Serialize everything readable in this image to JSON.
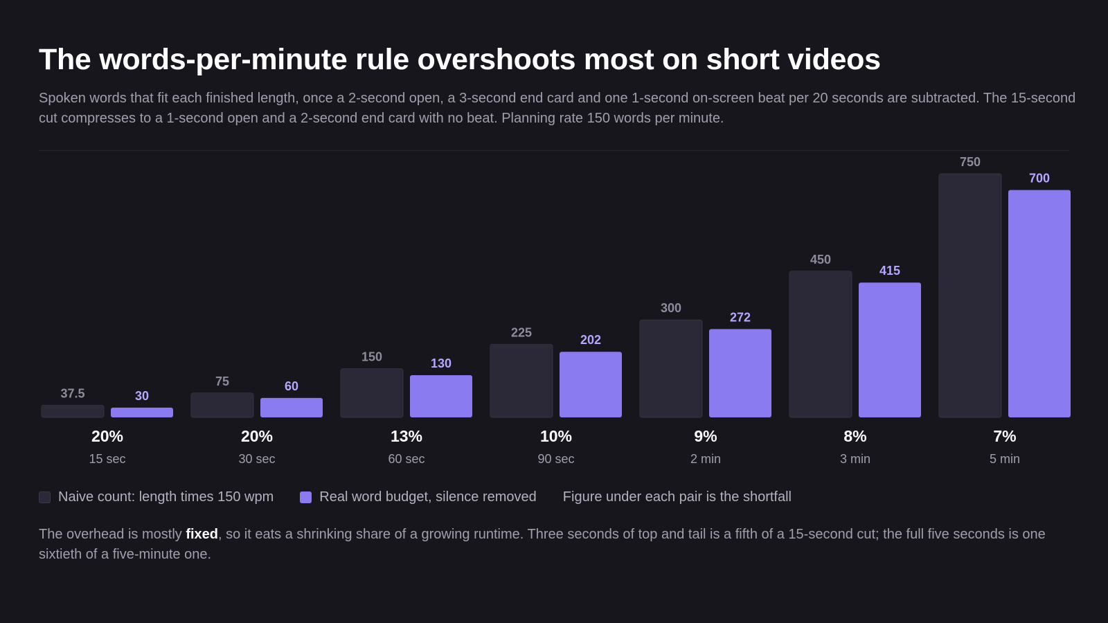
{
  "header": {
    "title": "The words-per-minute rule overshoots most on short videos",
    "subtitle": "Spoken words that fit each finished length, once a 2-second open, a 3-second end card and one 1-second on-screen beat per 20 seconds are subtracted. The 15-second cut compresses to a 1-second open and a 2-second end card with no beat. Planning rate 150 words per minute."
  },
  "chart_data": {
    "type": "bar",
    "categories": [
      "15 sec",
      "30 sec",
      "60 sec",
      "90 sec",
      "2 min",
      "3 min",
      "5 min"
    ],
    "series": [
      {
        "name": "Naive count: length times 150 wpm",
        "values": [
          37.5,
          75,
          150,
          225,
          300,
          450,
          750
        ],
        "labels": [
          "37.5",
          "75",
          "150",
          "225",
          "300",
          "450",
          "750"
        ],
        "color": "#2b2937",
        "label_color": "#8e8c9c"
      },
      {
        "name": "Real word budget, silence removed",
        "values": [
          30,
          60,
          130,
          202,
          272,
          415,
          700
        ],
        "labels": [
          "30",
          "60",
          "130",
          "202",
          "272",
          "415",
          "700"
        ],
        "color": "#8b7bf0",
        "label_color": "#b4a8ff"
      }
    ],
    "shortfall": [
      "20%",
      "20%",
      "13%",
      "10%",
      "9%",
      "8%",
      "7%"
    ],
    "ylim": [
      0,
      750
    ],
    "grid": false,
    "legend": "bottom-left"
  },
  "legend": {
    "naive": "Naive count: length times 150 wpm",
    "real": "Real word budget, silence removed",
    "note": "Figure under each pair is the shortfall"
  },
  "footnote": {
    "before": "The overhead is mostly ",
    "bold": "fixed",
    "after": ", so it eats a shrinking share of a growing runtime. Three seconds of top and tail is a fifth of a 15-second cut; the full five seconds is one sixtieth of a five-minute one."
  }
}
